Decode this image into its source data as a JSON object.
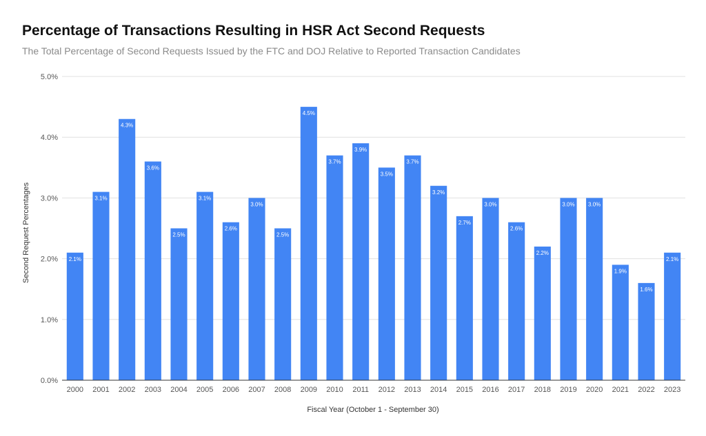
{
  "chart_data": {
    "type": "bar",
    "title": "Percentage of Transactions Resulting in HSR Act Second Requests",
    "subtitle": "The Total Percentage of Second Requests Issued by the FTC and DOJ Relative to Reported Transaction Candidates",
    "xlabel": "Fiscal Year (October 1 - September 30)",
    "ylabel": "Second Request Percentages",
    "categories": [
      "2000",
      "2001",
      "2002",
      "2003",
      "2004",
      "2005",
      "2006",
      "2007",
      "2008",
      "2009",
      "2010",
      "2011",
      "2012",
      "2013",
      "2014",
      "2015",
      "2016",
      "2017",
      "2018",
      "2019",
      "2020",
      "2021",
      "2022",
      "2023"
    ],
    "values": [
      2.1,
      3.1,
      4.3,
      3.6,
      2.5,
      3.1,
      2.6,
      3.0,
      2.5,
      4.5,
      3.7,
      3.9,
      3.5,
      3.7,
      3.2,
      2.7,
      3.0,
      2.6,
      2.2,
      3.0,
      3.0,
      1.9,
      1.6,
      2.1
    ],
    "data_labels": [
      "2.1%",
      "3.1%",
      "4.3%",
      "3.6%",
      "2.5%",
      "3.1%",
      "2.6%",
      "3.0%",
      "2.5%",
      "4.5%",
      "3.7%",
      "3.9%",
      "3.5%",
      "3.7%",
      "3.2%",
      "2.7%",
      "3.0%",
      "2.6%",
      "2.2%",
      "3.0%",
      "3.0%",
      "1.9%",
      "1.6%",
      "2.1%"
    ],
    "ylim": [
      0,
      5
    ],
    "yticks": [
      0,
      1,
      2,
      3,
      4,
      5
    ],
    "ytick_labels": [
      "0.0%",
      "1.0%",
      "2.0%",
      "3.0%",
      "4.0%",
      "5.0%"
    ],
    "grid": true,
    "legend": "none",
    "colors": {
      "bar": "#4285F4",
      "grid": "#e0e0e0",
      "axis": "#333333",
      "tick_text": "#555555",
      "data_label_text": "#ffffff"
    }
  }
}
